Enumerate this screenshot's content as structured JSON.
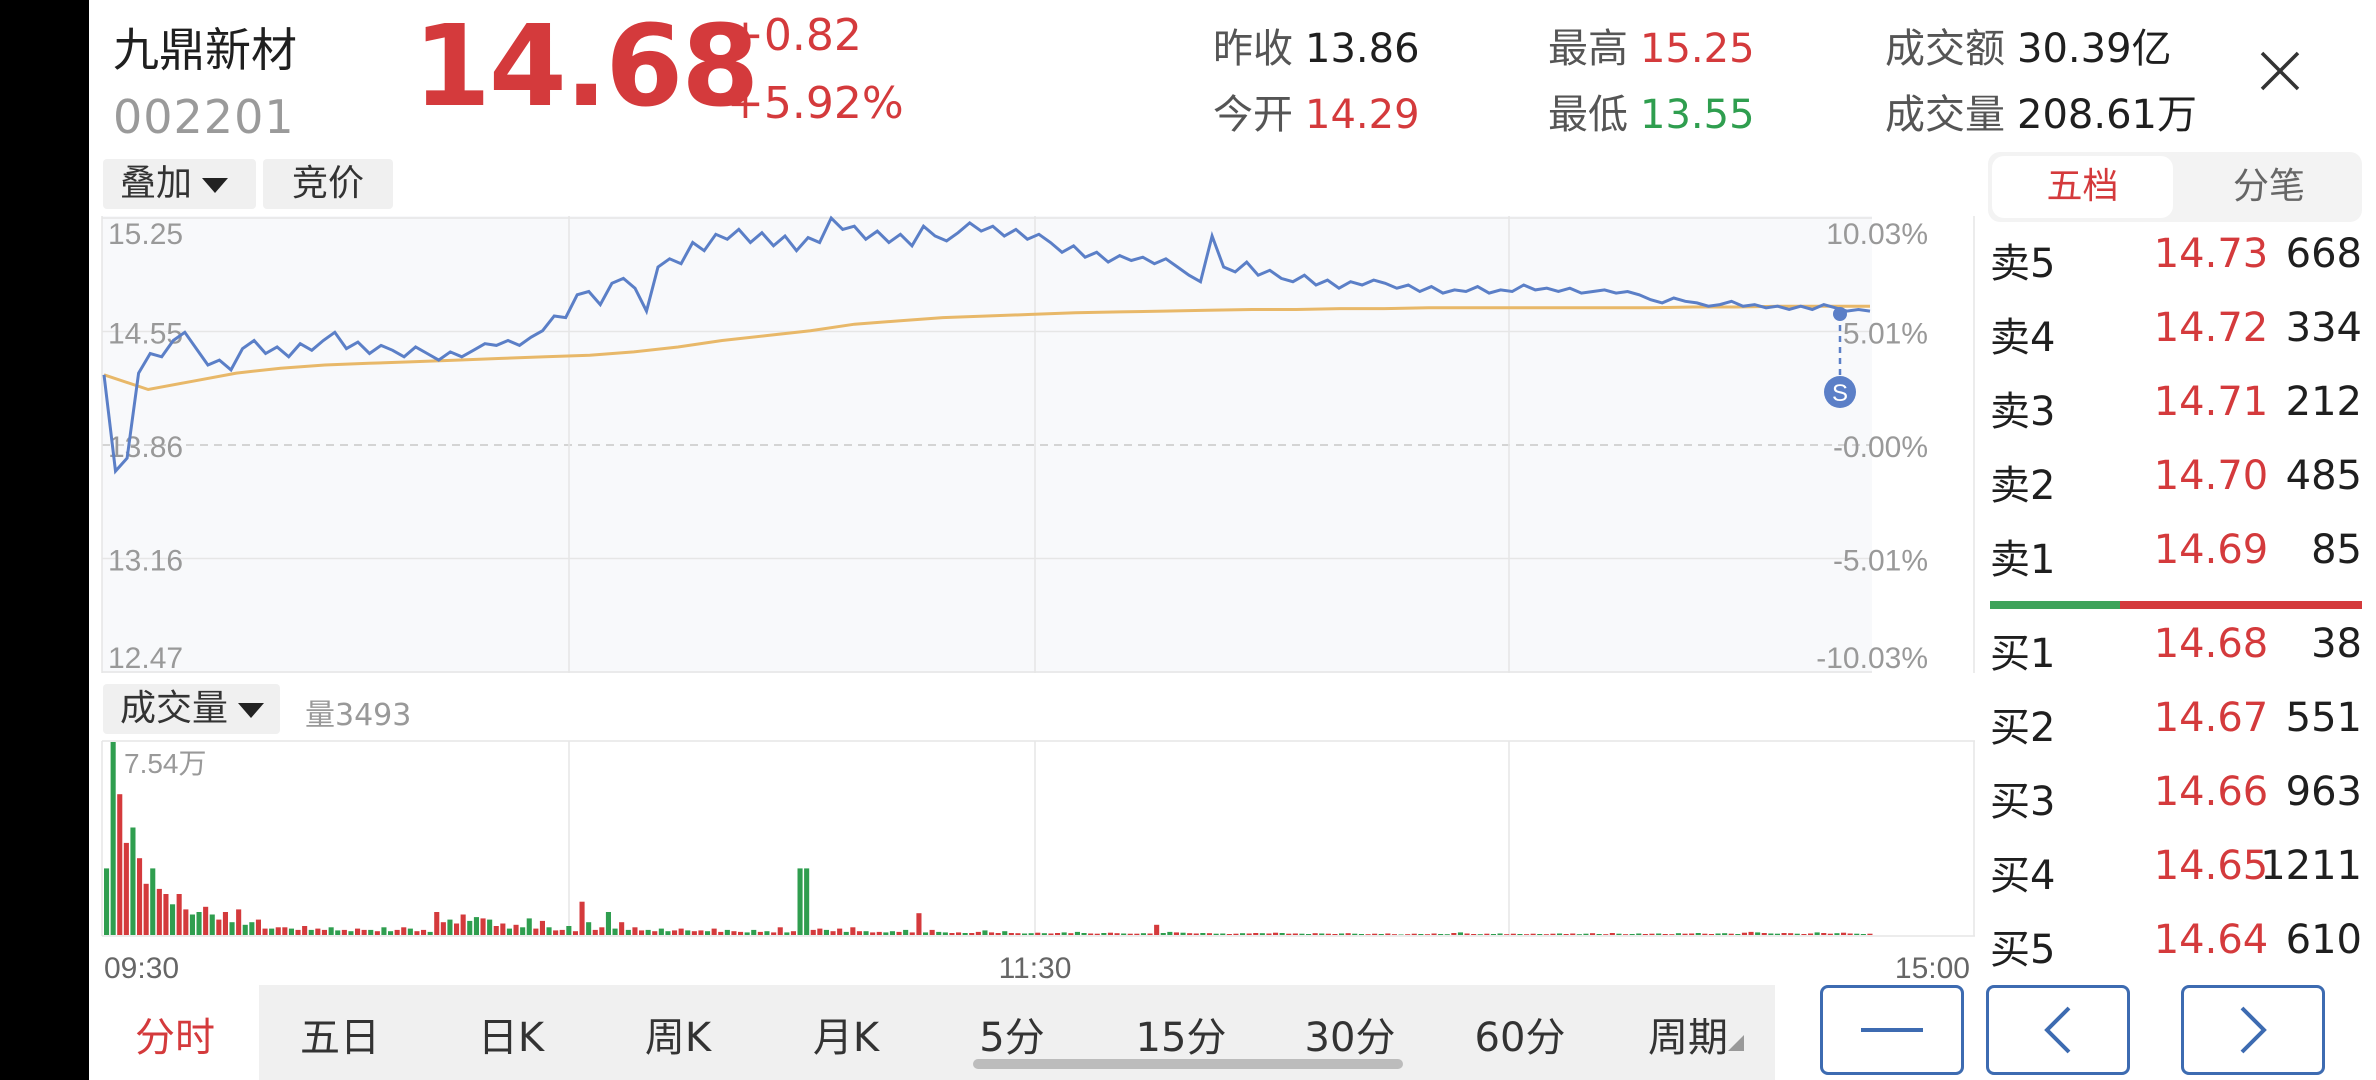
{
  "header": {
    "name": "九鼎新材",
    "code": "002201",
    "price": "14.68",
    "change": "+0.82",
    "change_pct": "+5.92%",
    "prev_close_label": "昨收",
    "prev_close": "13.86",
    "open_label": "今开",
    "open": "14.29",
    "high_label": "最高",
    "high": "15.25",
    "low_label": "最低",
    "low": "13.55",
    "turnover_label": "成交额",
    "turnover": "30.39亿",
    "volume_label": "成交量",
    "volume": "208.61万"
  },
  "chart_controls": {
    "overlay": "叠加",
    "auction": "竞价",
    "volume": "成交量",
    "volume_value": "量3493"
  },
  "chart_data": [
    {
      "type": "line",
      "price_ticks": [
        "15.25",
        "14.55",
        "13.86",
        "13.16",
        "12.47"
      ],
      "pct_ticks": [
        "10.03%",
        "5.01%",
        "-0.00%",
        "-5.01%",
        "-10.03%"
      ],
      "ylim": [
        12.47,
        15.25
      ],
      "series": [
        {
          "name": "price",
          "color": "#5b7fc7",
          "values": [
            14.29,
            13.7,
            13.78,
            14.3,
            14.42,
            14.4,
            14.5,
            14.55,
            14.45,
            14.35,
            14.38,
            14.32,
            14.45,
            14.5,
            14.42,
            14.46,
            14.4,
            14.48,
            14.44,
            14.5,
            14.55,
            14.45,
            14.49,
            14.42,
            14.47,
            14.44,
            14.4,
            14.46,
            14.42,
            14.38,
            14.43,
            14.4,
            14.44,
            14.48,
            14.47,
            14.5,
            14.47,
            14.52,
            14.56,
            14.65,
            14.64,
            14.78,
            14.8,
            14.72,
            14.85,
            14.88,
            14.82,
            14.68,
            14.95,
            15.0,
            14.97,
            15.1,
            15.05,
            15.15,
            15.12,
            15.18,
            15.1,
            15.16,
            15.08,
            15.14,
            15.05,
            15.13,
            15.1,
            15.25,
            15.18,
            15.2,
            15.12,
            15.17,
            15.1,
            15.15,
            15.08,
            15.2,
            15.14,
            15.11,
            15.16,
            15.22,
            15.17,
            15.2,
            15.14,
            15.18,
            15.12,
            15.15,
            15.1,
            15.04,
            15.08,
            15.01,
            15.04,
            14.98,
            15.02,
            14.99,
            15.01,
            14.97,
            15.0,
            14.95,
            14.9,
            14.86,
            15.14,
            14.95,
            14.92,
            14.98,
            14.9,
            14.93,
            14.88,
            14.86,
            14.9,
            14.84,
            14.87,
            14.82,
            14.86,
            14.84,
            14.87,
            14.85,
            14.82,
            14.84,
            14.8,
            14.83,
            14.79,
            14.81,
            14.8,
            14.83,
            14.79,
            14.81,
            14.8,
            14.84,
            14.81,
            14.82,
            14.8,
            14.82,
            14.79,
            14.8,
            14.81,
            14.79,
            14.8,
            14.78,
            14.75,
            14.73,
            14.76,
            14.74,
            14.73,
            14.71,
            14.72,
            14.74,
            14.71,
            14.72,
            14.7,
            14.71,
            14.69,
            14.71,
            14.69,
            14.72,
            14.7,
            14.68,
            14.69,
            14.68
          ]
        },
        {
          "name": "average",
          "color": "#e8b869",
          "values": [
            14.29,
            14.2,
            14.25,
            14.3,
            14.33,
            14.35,
            14.36,
            14.37,
            14.38,
            14.39,
            14.4,
            14.41,
            14.43,
            14.46,
            14.5,
            14.53,
            14.56,
            14.6,
            14.62,
            14.64,
            14.65,
            14.66,
            14.67,
            14.675,
            14.68,
            14.685,
            14.69,
            14.69,
            14.695,
            14.695,
            14.7,
            14.7,
            14.7,
            14.7,
            14.7,
            14.7,
            14.705,
            14.705,
            14.71,
            14.71,
            14.71
          ]
        }
      ]
    },
    {
      "type": "bar",
      "title": "成交量",
      "max_label": "7.54万",
      "ylim": [
        0,
        75400
      ],
      "x_labels": [
        "09:30",
        "11:30",
        "15:00"
      ],
      "values": [
        26000,
        75400,
        55000,
        36000,
        42000,
        30000,
        20000,
        26000,
        18000,
        16000,
        12000,
        16000,
        10000,
        8000,
        9000,
        11000,
        8000,
        6000,
        9000,
        5000,
        10000,
        4000,
        5000,
        6000,
        2500,
        2500,
        3000,
        3000,
        2500,
        2000,
        3500,
        2000,
        2500,
        2000,
        3000,
        1800,
        2000,
        1500,
        2500,
        2000,
        2000,
        1500,
        3000,
        1500,
        2000,
        3000,
        2500,
        1500,
        2000,
        1200,
        9000,
        5000,
        6000,
        4500,
        8000,
        5500,
        7000,
        6500,
        6000,
        3500,
        4500,
        2500,
        4000,
        3000,
        6500,
        2500,
        5500,
        3000,
        1800,
        2000,
        3500,
        1500,
        13000,
        5000,
        2000,
        3000,
        9000,
        2500,
        5000,
        2000,
        3000,
        1800,
        2000,
        1500,
        2500,
        1500,
        1800,
        2500,
        1800,
        1500,
        1800,
        1500,
        2500,
        1200,
        2000,
        1500,
        1200,
        1000,
        2000,
        1200,
        1500,
        1000,
        3000,
        1000,
        1500,
        26000,
        26000,
        2000,
        2500,
        2000,
        1500,
        2500,
        1200,
        3000,
        1500,
        1500,
        1000,
        1200,
        1000,
        1500,
        1200,
        2000,
        1000,
        8500,
        1000,
        2000,
        1200,
        1000,
        800,
        1000,
        800,
        800,
        1200,
        1800,
        1000,
        800,
        1500,
        800,
        700,
        600,
        700,
        900,
        700,
        600,
        800,
        1000,
        700,
        1200,
        800,
        600,
        500,
        800,
        900,
        700,
        600,
        500,
        500,
        700,
        600,
        4000,
        800,
        1200,
        1000,
        900,
        700,
        600,
        800,
        700,
        500,
        600,
        400,
        500,
        700,
        600,
        800,
        700,
        600,
        900,
        800,
        500,
        600,
        500,
        400,
        700,
        600,
        500,
        400,
        600,
        700,
        500,
        400,
        300,
        500,
        400,
        600,
        300,
        200,
        300,
        500,
        400,
        300,
        600,
        400,
        300,
        800,
        1000,
        600,
        400,
        300,
        500,
        400,
        600,
        300,
        500,
        400,
        300,
        500,
        400,
        300,
        500,
        600,
        400,
        600,
        300,
        500,
        700,
        400,
        300,
        800,
        500,
        300,
        400,
        600,
        400,
        500,
        600,
        400,
        300,
        700,
        500,
        600,
        800,
        500,
        400,
        600,
        700,
        500,
        400,
        900,
        1200,
        1000,
        800,
        600,
        500,
        800,
        700,
        500,
        400,
        600,
        1000,
        800,
        500,
        700,
        900,
        600,
        500,
        400,
        500
      ],
      "colors_note": "red=up, green=down"
    }
  ],
  "orderbook": {
    "tab_active": "五档",
    "tab_other": "分笔",
    "asks": [
      {
        "label": "卖5",
        "price": "14.73",
        "qty": "668"
      },
      {
        "label": "卖4",
        "price": "14.72",
        "qty": "334"
      },
      {
        "label": "卖3",
        "price": "14.71",
        "qty": "212"
      },
      {
        "label": "卖2",
        "price": "14.70",
        "qty": "485"
      },
      {
        "label": "卖1",
        "price": "14.69",
        "qty": "85"
      }
    ],
    "bids": [
      {
        "label": "买1",
        "price": "14.68",
        "qty": "38"
      },
      {
        "label": "买2",
        "price": "14.67",
        "qty": "551"
      },
      {
        "label": "买3",
        "price": "14.66",
        "qty": "963"
      },
      {
        "label": "买4",
        "price": "14.65",
        "qty": "1211"
      },
      {
        "label": "买5",
        "price": "14.64",
        "qty": "610"
      }
    ]
  },
  "timeframes": [
    "分时",
    "五日",
    "日K",
    "周K",
    "月K",
    "5分",
    "15分",
    "30分",
    "60分",
    "周期"
  ],
  "marker_label": "S",
  "colors": {
    "up": "#d43a3c",
    "down": "#2f9e4f",
    "accent": "#3d6bb1"
  }
}
